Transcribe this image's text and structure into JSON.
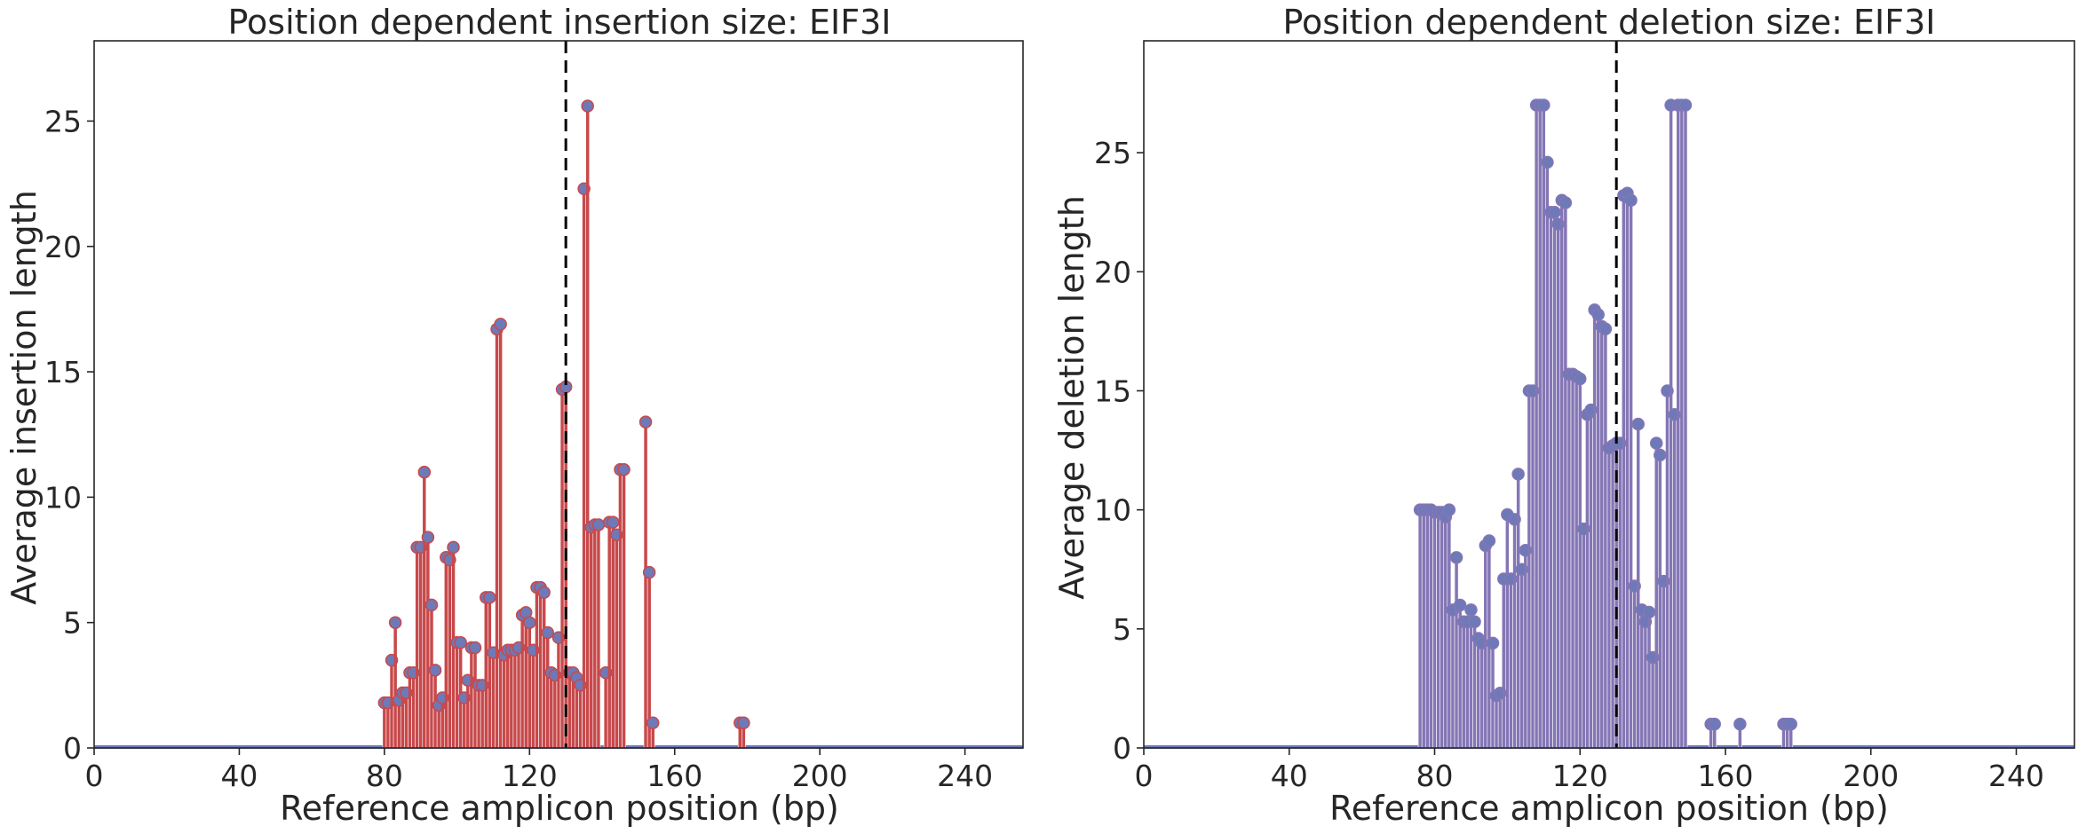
{
  "chart_data": [
    {
      "type": "bar",
      "title": "Position dependent insertion size: EIF3I",
      "xlabel": "Reference amplicon position (bp)",
      "ylabel": "Average insertion length",
      "xlim": [
        0,
        256
      ],
      "ylim": [
        0,
        28.2
      ],
      "xticks": [
        0,
        40,
        80,
        120,
        160,
        200,
        240
      ],
      "yticks": [
        0,
        5,
        10,
        15,
        20,
        25
      ],
      "cut_site": 130,
      "bar_color": "#c8494b",
      "marker_color": "#6e79b8",
      "baseline_color": "#6e79b8",
      "x": [
        80,
        81,
        82,
        83,
        84,
        85,
        86,
        87,
        88,
        89,
        90,
        91,
        92,
        93,
        94,
        95,
        96,
        97,
        98,
        99,
        100,
        101,
        102,
        103,
        104,
        105,
        106,
        107,
        108,
        109,
        110,
        111,
        112,
        113,
        114,
        115,
        116,
        117,
        118,
        119,
        120,
        121,
        122,
        123,
        124,
        125,
        126,
        127,
        128,
        129,
        130,
        131,
        132,
        133,
        134,
        135,
        136,
        137,
        138,
        139,
        140,
        141,
        142,
        143,
        144,
        145,
        146,
        147,
        148,
        149,
        150,
        151,
        152,
        153,
        154,
        155,
        156,
        157,
        158,
        159,
        160,
        161,
        162,
        163,
        164,
        165,
        166,
        167,
        168,
        169,
        170,
        171,
        172,
        173,
        174,
        175,
        176,
        177,
        178,
        179
      ],
      "values": [
        1.8,
        1.8,
        3.5,
        5.0,
        1.9,
        2.2,
        2.2,
        3.0,
        3.0,
        8.0,
        8.0,
        11.0,
        8.4,
        5.7,
        3.1,
        1.7,
        2.0,
        7.6,
        7.5,
        8.0,
        4.2,
        4.2,
        2.0,
        2.7,
        4.0,
        4.0,
        2.5,
        2.5,
        6.0,
        6.0,
        3.8,
        16.7,
        16.9,
        3.7,
        3.9,
        3.9,
        3.9,
        4.0,
        5.3,
        5.4,
        5.0,
        3.9,
        6.4,
        6.4,
        6.2,
        4.6,
        3.0,
        2.9,
        4.4,
        14.3,
        14.4,
        3.0,
        3.0,
        2.8,
        2.5,
        22.3,
        25.6,
        8.8,
        8.9,
        8.9,
        0,
        3.0,
        9.0,
        9.0,
        8.5,
        11.1,
        11.1,
        0,
        0,
        0,
        0,
        0,
        13.0,
        7.0,
        1.0,
        0,
        0,
        0,
        0,
        0,
        0,
        0,
        0,
        0,
        0,
        0,
        0,
        0,
        0,
        0,
        0,
        0,
        0,
        0,
        0,
        0,
        0,
        0,
        1.0,
        1.0
      ]
    },
    {
      "type": "bar",
      "title": "Position dependent deletion size: EIF3I",
      "xlabel": "Reference amplicon position (bp)",
      "ylabel": "Average deletion length",
      "xlim": [
        0,
        256
      ],
      "ylim": [
        0,
        29.7
      ],
      "xticks": [
        0,
        40,
        80,
        120,
        160,
        200,
        240
      ],
      "yticks": [
        0,
        5,
        10,
        15,
        20,
        25
      ],
      "cut_site": 130,
      "bar_color": "#8476b5",
      "marker_color": "#6e79b8",
      "baseline_color": "#6e79b8",
      "x": [
        76,
        77,
        78,
        79,
        80,
        81,
        82,
        83,
        84,
        85,
        86,
        87,
        88,
        89,
        90,
        91,
        92,
        93,
        94,
        95,
        96,
        97,
        98,
        99,
        100,
        101,
        102,
        103,
        104,
        105,
        106,
        107,
        108,
        109,
        110,
        111,
        112,
        113,
        114,
        115,
        116,
        117,
        118,
        119,
        120,
        121,
        122,
        123,
        124,
        125,
        126,
        127,
        128,
        129,
        130,
        131,
        132,
        133,
        134,
        135,
        136,
        137,
        138,
        139,
        140,
        141,
        142,
        143,
        144,
        145,
        146,
        147,
        148,
        149,
        150,
        151,
        152,
        153,
        154,
        155,
        156,
        157,
        158,
        159,
        160,
        161,
        162,
        163,
        164,
        165,
        166,
        167,
        168,
        169,
        170,
        171,
        172,
        173,
        174,
        175,
        176,
        177,
        178
      ],
      "values": [
        10.0,
        10.0,
        10.0,
        10.0,
        9.9,
        9.9,
        9.9,
        9.7,
        10.0,
        5.8,
        8.0,
        6.0,
        5.3,
        5.3,
        5.8,
        5.3,
        4.6,
        4.4,
        8.5,
        8.7,
        4.4,
        2.2,
        2.3,
        7.1,
        9.8,
        7.1,
        9.6,
        11.5,
        7.5,
        8.3,
        15.0,
        15.0,
        27.0,
        27.0,
        27.0,
        24.6,
        22.5,
        22.5,
        22.0,
        23.0,
        22.9,
        15.7,
        15.7,
        15.6,
        15.5,
        9.2,
        14.0,
        14.2,
        18.4,
        18.2,
        17.7,
        17.6,
        12.6,
        12.7,
        12.8,
        12.8,
        23.2,
        23.3,
        23.0,
        6.8,
        13.6,
        5.8,
        5.3,
        5.7,
        3.8,
        12.8,
        12.3,
        7.0,
        15.0,
        27.0,
        14.0,
        27.0,
        27.0,
        27.0,
        0,
        0,
        0,
        0,
        0,
        0,
        1.0,
        1.0,
        0,
        0,
        0,
        0,
        0,
        0,
        1.0,
        0,
        0,
        0,
        0,
        0,
        0,
        0,
        0,
        0,
        0,
        0,
        1.0,
        1.0,
        1.0
      ]
    }
  ]
}
